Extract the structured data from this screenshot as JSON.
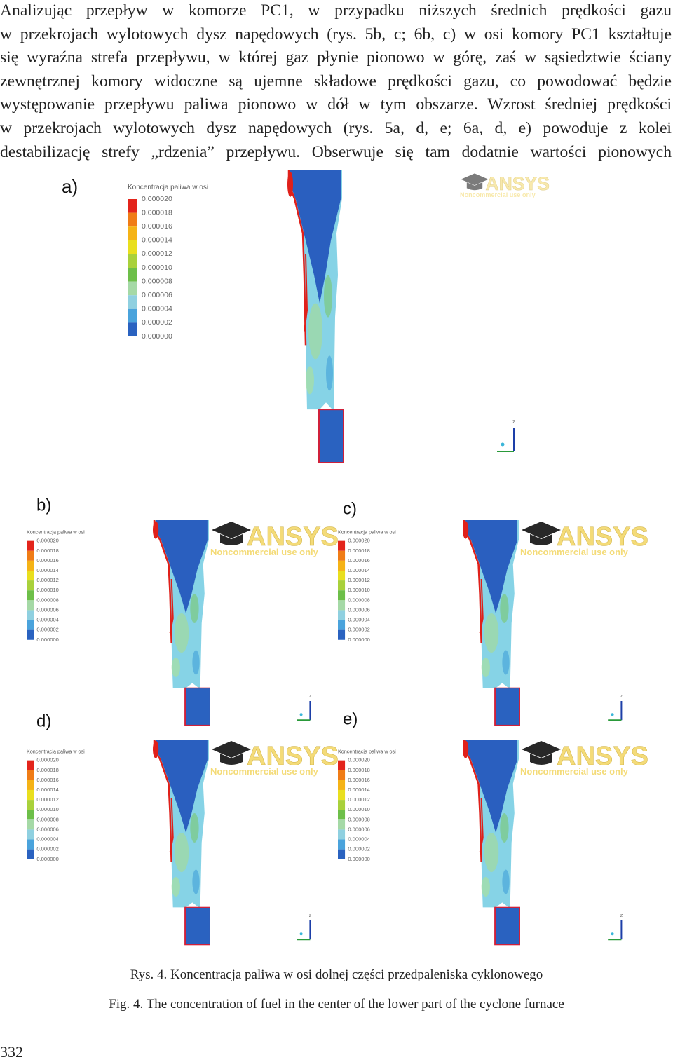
{
  "body": {
    "lines": [
      "Analizując przepływ w komorze PC1, w przypadku niższych średnich prędkości gazu",
      "w przekrojach wylotowych dysz napędowych (rys. 5b, c; 6b, c) w osi komory PC1 kształtuje",
      "się wyraźna strefa przepływu, w której gaz płynie pionowo w górę, zaś w sąsiedztwie ściany",
      "zewnętrznej komory widoczne są ujemne składowe prędkości gazu, co powodować będzie",
      "występowanie przepływu paliwa pionowo w dół w tym obszarze. Wzrost średniej prędkości",
      "w przekrojach wylotowych dysz napędowych (rys. 5a, d, e; 6a, d, e) powoduje z kolei",
      "destabilizację strefy „rdzenia” przepływu. Obserwuje się tam dodatnie wartości pionowych"
    ]
  },
  "figure": {
    "legend_title": "Koncentracja paliwa w osi",
    "legend_ticks": [
      "0.000020",
      "0.000018",
      "0.000016",
      "0.000014",
      "0.000012",
      "0.000010",
      "0.000008",
      "0.000006",
      "0.000004",
      "0.000002",
      "0.000000"
    ],
    "watermark": {
      "brand": "ANSYS",
      "note": "Noncommercial use only"
    },
    "axis_label": "z",
    "panels": [
      {
        "label": "a)"
      },
      {
        "label": "b)"
      },
      {
        "label": "c)"
      },
      {
        "label": "d)"
      },
      {
        "label": "e)"
      }
    ]
  },
  "captions": {
    "polish": "Rys. 4. Koncentracja paliwa w osi dolnej części przedpaleniska cyklonowego",
    "english": "Fig. 4. The concentration of fuel in the center of the lower part of the cyclone furnace"
  },
  "page_number": "332"
}
